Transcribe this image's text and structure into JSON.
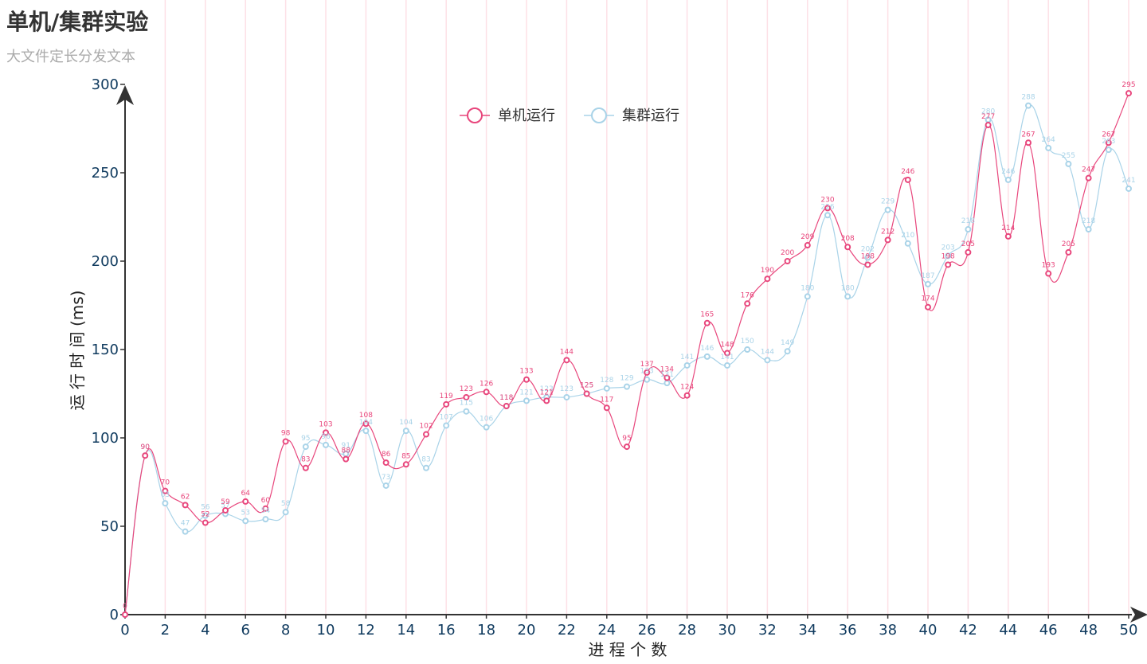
{
  "title": "单机/集群实验",
  "subtitle": "大文件定长分发文本",
  "chart_data": {
    "type": "line",
    "smooth": true,
    "xlabel": "进 程 个 数",
    "ylabel": "运 行 时 间 (ms)",
    "xlim": [
      0,
      50
    ],
    "ylim": [
      0,
      300
    ],
    "x_tick_step": 2,
    "y_tick_step": 50,
    "grid": "vertical",
    "legend_position": "top-center",
    "x": [
      0,
      1,
      2,
      3,
      4,
      5,
      6,
      7,
      8,
      9,
      10,
      11,
      12,
      13,
      14,
      15,
      16,
      17,
      18,
      19,
      20,
      21,
      22,
      23,
      24,
      25,
      26,
      27,
      28,
      29,
      30,
      31,
      32,
      33,
      34,
      35,
      36,
      37,
      38,
      39,
      40,
      41,
      42,
      43,
      44,
      45,
      46,
      47,
      48,
      49,
      50
    ],
    "series": [
      {
        "name": "单机运行",
        "color": "#e8467c",
        "values": [
          0,
          90,
          70,
          62,
          52,
          59,
          64,
          60,
          98,
          83,
          103,
          88,
          108,
          86,
          85,
          102,
          119,
          123,
          126,
          118,
          133,
          121,
          144,
          125,
          117,
          95,
          137,
          134,
          124,
          165,
          148,
          176,
          190,
          200,
          209,
          230,
          208,
          198,
          212,
          246,
          174,
          198,
          205,
          277,
          214,
          267,
          193,
          205,
          247,
          267,
          295
        ]
      },
      {
        "name": "集群运行",
        "color": "#a9d3e8",
        "values": [
          0,
          90,
          63,
          47,
          56,
          57,
          53,
          54,
          58,
          95,
          96,
          91,
          104,
          73,
          104,
          83,
          107,
          115,
          106,
          118,
          121,
          123,
          123,
          125,
          128,
          129,
          133,
          131,
          141,
          146,
          141,
          150,
          144,
          149,
          180,
          226,
          180,
          202,
          229,
          210,
          187,
          203,
          218,
          280,
          246,
          288,
          264,
          255,
          218,
          263,
          241
        ]
      }
    ]
  }
}
